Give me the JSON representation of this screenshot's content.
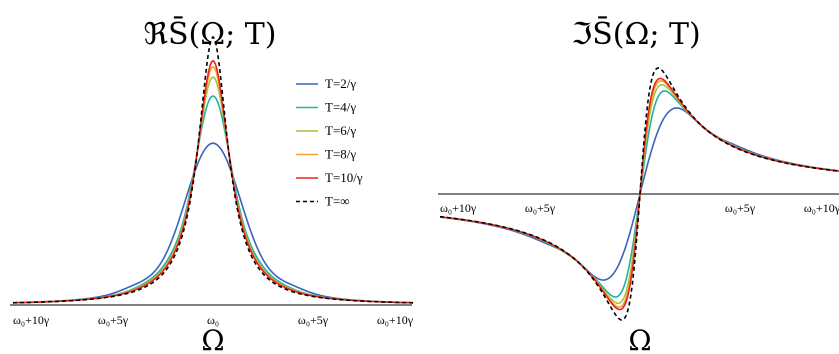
{
  "chart_data": [
    {
      "type": "line",
      "title": "ℜS̄(Ω; T)",
      "xlabel": "Ω",
      "ylabel": "",
      "xlim": [
        -10,
        10
      ],
      "ylim": [
        0,
        1.05
      ],
      "x_ticks": [
        {
          "x": -10,
          "label": "ω₀+10γ"
        },
        {
          "x": -5,
          "label": "ω₀+5γ"
        },
        {
          "x": 0,
          "label": "ω₀"
        },
        {
          "x": 5,
          "label": "ω₀+5γ"
        },
        {
          "x": 10,
          "label": "ω₀+10γ"
        }
      ],
      "grid": false,
      "legend_position": "top-right",
      "series": [
        {
          "name": "T=2/γ",
          "color": "#3d63c0",
          "dash": false,
          "T": 2
        },
        {
          "name": "T=4/γ",
          "color": "#26b2a0",
          "dash": false,
          "T": 4
        },
        {
          "name": "T=6/γ",
          "color": "#a6c43c",
          "dash": false,
          "T": 6
        },
        {
          "name": "T=8/γ",
          "color": "#f5a12e",
          "dash": false,
          "T": 8
        },
        {
          "name": "T=10/γ",
          "color": "#e8231e",
          "dash": false,
          "T": 10
        },
        {
          "name": "T=∞",
          "color": "#000000",
          "dash": true,
          "T": null
        }
      ]
    },
    {
      "type": "line",
      "title": "ℑS̄(Ω; T)",
      "xlabel": "Ω",
      "ylabel": "",
      "xlim": [
        -10,
        10
      ],
      "ylim": [
        -0.55,
        0.55
      ],
      "x_ticks": [
        {
          "x": -10,
          "label": "ω₀+10γ"
        },
        {
          "x": -5,
          "label": "ω₀+5γ"
        },
        {
          "x": 5,
          "label": "ω₀+5γ"
        },
        {
          "x": 10,
          "label": "ω₀+10γ"
        }
      ],
      "grid": false,
      "series": [
        {
          "name": "T=2/γ",
          "color": "#3d63c0",
          "dash": false,
          "T": 2
        },
        {
          "name": "T=4/γ",
          "color": "#26b2a0",
          "dash": false,
          "T": 4
        },
        {
          "name": "T=6/γ",
          "color": "#a6c43c",
          "dash": false,
          "T": 6
        },
        {
          "name": "T=8/γ",
          "color": "#f5a12e",
          "dash": false,
          "T": 8
        },
        {
          "name": "T=10/γ",
          "color": "#e8231e",
          "dash": false,
          "T": 10
        },
        {
          "name": "T=∞",
          "color": "#000000",
          "dash": true,
          "T": null
        }
      ]
    }
  ]
}
